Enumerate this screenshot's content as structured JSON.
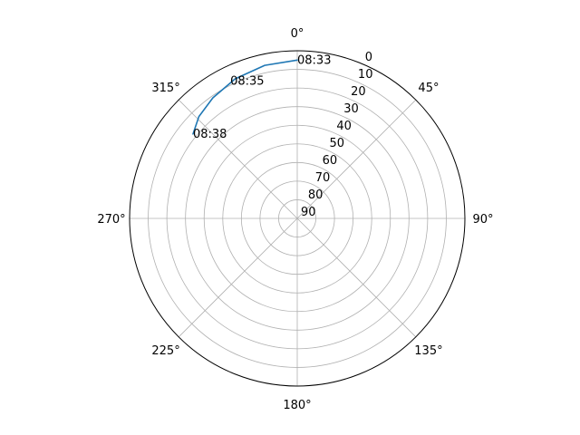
{
  "chart_data": {
    "type": "polar-line",
    "title": "",
    "theta_direction": "clockwise",
    "theta_zero": "top",
    "theta_ticks": [
      "0°",
      "45°",
      "90°",
      "135°",
      "180°",
      "225°",
      "270°",
      "315°"
    ],
    "theta_tick_degrees": [
      0,
      45,
      90,
      135,
      180,
      225,
      270,
      315
    ],
    "r_axis": "elevation, 0 at rim to 90 at center",
    "r_ticks": [
      "0",
      "10",
      "20",
      "30",
      "40",
      "50",
      "60",
      "70",
      "80",
      "90"
    ],
    "r_tick_values": [
      0,
      10,
      20,
      30,
      40,
      50,
      60,
      70,
      80,
      90
    ],
    "r_range": [
      0,
      90
    ],
    "r_label_angle_deg": 22.5,
    "grid": true,
    "series": [
      {
        "color": "#1f77b4",
        "points": [
          {
            "azimuth": 0,
            "elevation": 5
          },
          {
            "azimuth": 348,
            "elevation": 6
          },
          {
            "azimuth": 336,
            "elevation": 8
          },
          {
            "azimuth": 325,
            "elevation": 11
          },
          {
            "azimuth": 316,
            "elevation": 14
          },
          {
            "azimuth": 309,
            "elevation": 18
          }
        ]
      }
    ],
    "annotations": [
      {
        "text": "08:33",
        "azimuth": 0,
        "elevation": 5
      },
      {
        "text": "08:35",
        "azimuth": 334,
        "elevation": 8
      },
      {
        "text": "08:38",
        "azimuth": 309,
        "elevation": 18
      }
    ],
    "colors": {
      "grid": "#b0b0b0",
      "frame": "#000000",
      "line": "#1f77b4",
      "text": "#000000"
    }
  }
}
